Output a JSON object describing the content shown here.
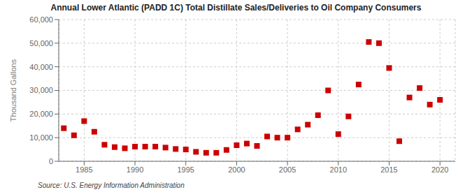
{
  "chart_data": {
    "type": "scatter",
    "title": "Annual Lower Atlantic (PADD 1C) Total Distillate Sales/Deliveries to Oil Company Consumers",
    "y_label": "Thousand Gallons",
    "annotations": [
      "Source: U.S. Energy Information Administration"
    ],
    "x": [
      1983,
      1984,
      1985,
      1986,
      1987,
      1988,
      1989,
      1990,
      1991,
      1992,
      1993,
      1994,
      1995,
      1996,
      1997,
      1998,
      1999,
      2000,
      2001,
      2002,
      2003,
      2004,
      2005,
      2006,
      2007,
      2008,
      2009,
      2010,
      2011,
      2012,
      2013,
      2014,
      2015,
      2016,
      2017,
      2018,
      2019,
      2020
    ],
    "values": [
      14000,
      11000,
      17000,
      12500,
      7000,
      6000,
      5500,
      6200,
      6200,
      6200,
      5800,
      5200,
      5000,
      4000,
      3600,
      3600,
      4800,
      6800,
      7500,
      6500,
      10500,
      10000,
      10000,
      13500,
      15500,
      19500,
      30000,
      11500,
      19000,
      32500,
      50500,
      50000,
      39500,
      8500,
      27000,
      31000,
      24000,
      26000
    ],
    "color": "#cc0000",
    "marker": "square",
    "xlim": [
      1982.5,
      2021.5
    ],
    "xticks": [
      1985,
      1990,
      1995,
      2000,
      2005,
      2010,
      2015,
      2020
    ],
    "ylim": [
      0,
      60000
    ],
    "yticks": [
      0,
      {
        "value": 10000,
        "label": "10,000"
      },
      {
        "value": 20000,
        "label": "20,000"
      },
      {
        "value": 30000,
        "label": "30,000"
      },
      {
        "value": 40000,
        "label": "40,000"
      },
      {
        "value": 50000,
        "label": "50,000"
      },
      {
        "value": 60000,
        "label": "60,000"
      }
    ],
    "grid": true
  }
}
